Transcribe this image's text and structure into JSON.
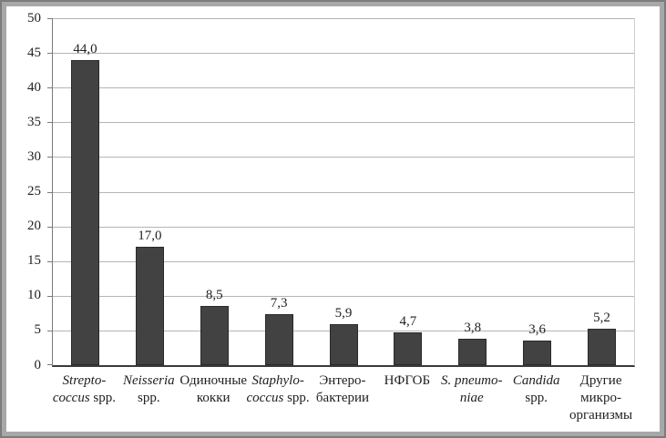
{
  "chart_data": {
    "type": "bar",
    "title": "",
    "xlabel": "",
    "ylabel": "",
    "ylim": [
      0,
      50
    ],
    "yticks": [
      0,
      5,
      10,
      15,
      20,
      25,
      30,
      35,
      40,
      45,
      50
    ],
    "ytick_labels": [
      "0",
      "5",
      "10",
      "15",
      "20",
      "25",
      "30",
      "35",
      "40",
      "45",
      "50"
    ],
    "grid": "horizontal",
    "legend": "none",
    "bar_color": "#424242",
    "bar_border_color": "#2a2a2a",
    "gridline_color": "#b5b5b5",
    "frame_color": "#a8a8a8",
    "categories": [
      "Streptococcus spp.",
      "Neisseria spp.",
      "Одиночные кокки",
      "Staphylococcus spp.",
      "Энтеробактерии",
      "НФГОБ",
      "S. pneumoniae",
      "Candida spp.",
      "Другие микроорганизмы"
    ],
    "values": [
      44.0,
      17.0,
      8.5,
      7.3,
      5.9,
      4.7,
      3.8,
      3.6,
      5.2
    ],
    "value_labels": [
      "44,0",
      "17,0",
      "8,5",
      "7,3",
      "5,9",
      "4,7",
      "3,8",
      "3,6",
      "5,2"
    ],
    "category_lines": [
      [
        [
          {
            "t": "Strepto-",
            "i": 1
          }
        ],
        [
          {
            "t": "coccus",
            "i": 1
          },
          {
            "t": " spp.",
            "i": 0
          }
        ]
      ],
      [
        [
          {
            "t": "Neisseria",
            "i": 1
          }
        ],
        [
          {
            "t": "spp.",
            "i": 0
          }
        ]
      ],
      [
        [
          {
            "t": "Одиночные",
            "i": 0
          }
        ],
        [
          {
            "t": "кокки",
            "i": 0
          }
        ]
      ],
      [
        [
          {
            "t": "Staphylo-",
            "i": 1
          }
        ],
        [
          {
            "t": "coccus",
            "i": 1
          },
          {
            "t": " spp.",
            "i": 0
          }
        ]
      ],
      [
        [
          {
            "t": "Энтеро-",
            "i": 0
          }
        ],
        [
          {
            "t": "бактерии",
            "i": 0
          }
        ]
      ],
      [
        [
          {
            "t": "НФГОБ",
            "i": 0
          }
        ]
      ],
      [
        [
          {
            "t": "S. pneumo-",
            "i": 1
          }
        ],
        [
          {
            "t": "niae",
            "i": 1
          }
        ]
      ],
      [
        [
          {
            "t": "Candida",
            "i": 1
          }
        ],
        [
          {
            "t": "spp.",
            "i": 0
          }
        ]
      ],
      [
        [
          {
            "t": "Другие",
            "i": 0
          }
        ],
        [
          {
            "t": "микро-",
            "i": 0
          }
        ],
        [
          {
            "t": "организмы",
            "i": 0
          }
        ]
      ]
    ]
  }
}
